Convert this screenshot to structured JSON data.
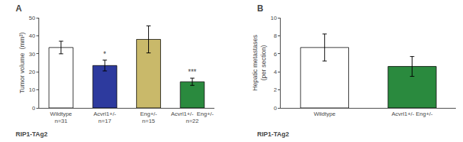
{
  "chart_data": [
    {
      "type": "bar",
      "title": "A",
      "categories": [
        "Wildtype\nn=31",
        "Acvrl1+/-\nn=17",
        "Eng+/-\nn=15",
        "Acvrl1+/-  Eng+/-\nn=22"
      ],
      "values": [
        33.5,
        23.5,
        38.0,
        14.5
      ],
      "errors": [
        3.5,
        3.0,
        7.5,
        2.0
      ],
      "colors": [
        "#ffffff",
        "#2d3a9e",
        "#c9b96a",
        "#2a8a3e"
      ],
      "ylabel": "Tumor volume  (mm³)",
      "xlabel": "RIP1-TAg2",
      "ylim": [
        0,
        50
      ],
      "yticks": [
        0,
        10,
        20,
        30,
        40,
        50
      ],
      "grid": false,
      "annotations": [
        {
          "category": "Acvrl1+/-\nn=17",
          "text": "*"
        },
        {
          "category": "Acvrl1+/-  Eng+/-\nn=22",
          "text": "***"
        }
      ]
    },
    {
      "type": "bar",
      "title": "B",
      "categories": [
        "Wildtype",
        "Acvrl1+/- Eng+/-"
      ],
      "values": [
        6.7,
        4.6
      ],
      "errors": [
        1.5,
        1.1
      ],
      "colors": [
        "#ffffff",
        "#2a8a3e"
      ],
      "ylabel": "Hepatic metastases\n(per section)",
      "xlabel": "RIP1-TAg2",
      "ylim": [
        0,
        10
      ],
      "yticks": [
        0,
        2,
        4,
        6,
        8,
        10
      ],
      "grid": false
    }
  ]
}
